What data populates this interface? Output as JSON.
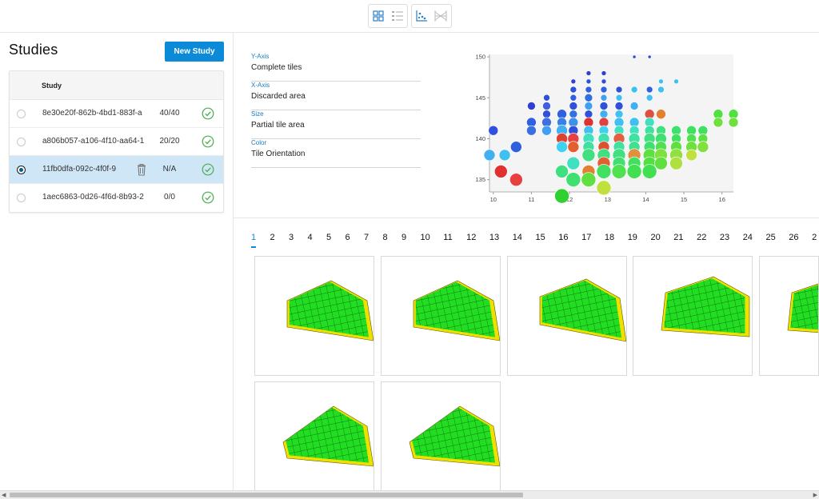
{
  "toolbar": {
    "views": [
      {
        "name": "grid-view",
        "icon": "grid-icon"
      },
      {
        "name": "list-view",
        "icon": "list-icon"
      },
      {
        "name": "scatter-view",
        "icon": "scatter-plot-icon"
      },
      {
        "name": "parallel-view",
        "icon": "parallel-coordinates-icon"
      }
    ]
  },
  "sidebar": {
    "title": "Studies",
    "new_study_label": "New Study",
    "table_header": "Study",
    "rows": [
      {
        "id": "8e30e20f-862b-4bd1-883f-a",
        "progress": "40/40",
        "selected": false
      },
      {
        "id": "a806b057-a106-4f10-aa64-1",
        "progress": "20/20",
        "selected": false
      },
      {
        "id": "11fb0dfa-092c-4f0f-9",
        "progress": "N/A",
        "selected": true
      },
      {
        "id": "1aec6863-0d26-4f6d-8b93-2",
        "progress": "0/0",
        "selected": false
      }
    ]
  },
  "axes": {
    "y": {
      "label": "Y-Axis",
      "value": "Complete tiles"
    },
    "x": {
      "label": "X-Axis",
      "value": "Discarded area"
    },
    "size": {
      "label": "Size",
      "value": "Partial tile area"
    },
    "color": {
      "label": "Color",
      "value": "Tile Orientation"
    }
  },
  "chart_data": {
    "type": "scatter",
    "xlim": [
      9.9,
      16.3
    ],
    "ylim": [
      133.5,
      150.3
    ],
    "xticks": [
      "10",
      "11",
      "12",
      "13",
      "14",
      "15",
      "16"
    ],
    "yticks": [
      "135",
      "140",
      "145",
      "150"
    ],
    "grid": false,
    "points": [
      [
        10.0,
        141,
        6,
        "#3050e0"
      ],
      [
        9.9,
        138,
        7,
        "#40b0f0"
      ],
      [
        10.3,
        138,
        7,
        "#40c0f0"
      ],
      [
        10.6,
        139,
        7,
        "#3060e0"
      ],
      [
        10.2,
        136,
        8,
        "#e03030"
      ],
      [
        10.6,
        135,
        8,
        "#e84040"
      ],
      [
        11.0,
        144,
        5,
        "#3040d0"
      ],
      [
        11.0,
        142,
        6,
        "#3060e0"
      ],
      [
        11.0,
        141,
        6,
        "#3870e0"
      ],
      [
        11.4,
        145,
        4,
        "#3050d8"
      ],
      [
        11.4,
        144,
        5,
        "#4060e0"
      ],
      [
        11.4,
        143,
        5,
        "#3050d8"
      ],
      [
        11.4,
        142,
        6,
        "#4070e0"
      ],
      [
        11.4,
        141,
        6,
        "#40a0f0"
      ],
      [
        11.8,
        143,
        6,
        "#3060e0"
      ],
      [
        11.8,
        142,
        6,
        "#3880e8"
      ],
      [
        11.8,
        141,
        7,
        "#40b0f0"
      ],
      [
        11.8,
        140,
        7,
        "#e04030"
      ],
      [
        11.8,
        139,
        7,
        "#40d0f0"
      ],
      [
        11.8,
        136,
        8,
        "#40e080"
      ],
      [
        11.8,
        133,
        9,
        "#30d030"
      ],
      [
        12.1,
        147,
        3,
        "#3040d0"
      ],
      [
        12.1,
        146,
        4,
        "#3050d8"
      ],
      [
        12.1,
        145,
        4,
        "#3060e0"
      ],
      [
        12.1,
        144,
        5,
        "#3050d8"
      ],
      [
        12.1,
        143,
        5,
        "#3070e0"
      ],
      [
        12.1,
        142,
        6,
        "#4090e8"
      ],
      [
        12.1,
        141,
        6,
        "#3050d8"
      ],
      [
        12.1,
        140,
        7,
        "#e84040"
      ],
      [
        12.1,
        139,
        7,
        "#e06030"
      ],
      [
        12.1,
        137,
        8,
        "#40e0c0"
      ],
      [
        12.1,
        135,
        9,
        "#40e070"
      ],
      [
        12.5,
        148,
        3,
        "#3040d0"
      ],
      [
        12.5,
        147,
        3,
        "#3050d8"
      ],
      [
        12.5,
        146,
        4,
        "#3060e0"
      ],
      [
        12.5,
        145,
        5,
        "#3070e0"
      ],
      [
        12.5,
        144,
        5,
        "#40a0f0"
      ],
      [
        12.5,
        143,
        5,
        "#3050d8"
      ],
      [
        12.5,
        142,
        6,
        "#e03030"
      ],
      [
        12.5,
        141,
        6,
        "#40c0f0"
      ],
      [
        12.5,
        140,
        7,
        "#40e0c0"
      ],
      [
        12.5,
        139,
        7,
        "#40e0a0"
      ],
      [
        12.5,
        138,
        8,
        "#40e080"
      ],
      [
        12.5,
        136,
        8,
        "#e08030"
      ],
      [
        12.5,
        135,
        9,
        "#60e040"
      ],
      [
        12.9,
        148,
        3,
        "#3040d0"
      ],
      [
        12.9,
        147,
        3,
        "#3050d8"
      ],
      [
        12.9,
        146,
        4,
        "#3060e0"
      ],
      [
        12.9,
        145,
        4,
        "#40a0f0"
      ],
      [
        12.9,
        144,
        5,
        "#3050d8"
      ],
      [
        12.9,
        143,
        5,
        "#40b0f0"
      ],
      [
        12.9,
        142,
        6,
        "#e04040"
      ],
      [
        12.9,
        141,
        6,
        "#40d0f0"
      ],
      [
        12.9,
        140,
        7,
        "#40e0b0"
      ],
      [
        12.9,
        139,
        7,
        "#e05030"
      ],
      [
        12.9,
        138,
        8,
        "#40e080"
      ],
      [
        12.9,
        137,
        8,
        "#e06030"
      ],
      [
        12.9,
        136,
        9,
        "#40e060"
      ],
      [
        12.9,
        134,
        9,
        "#c0e040"
      ],
      [
        13.3,
        146,
        4,
        "#3050d8"
      ],
      [
        13.3,
        145,
        4,
        "#40c0f0"
      ],
      [
        13.3,
        144,
        5,
        "#3050d8"
      ],
      [
        13.3,
        143,
        5,
        "#40c0f0"
      ],
      [
        13.3,
        142,
        6,
        "#40c0f0"
      ],
      [
        13.3,
        141,
        6,
        "#40e0c0"
      ],
      [
        13.3,
        140,
        7,
        "#e06040"
      ],
      [
        13.3,
        139,
        7,
        "#40e0a0"
      ],
      [
        13.3,
        138,
        8,
        "#40e080"
      ],
      [
        13.3,
        137,
        8,
        "#40e070"
      ],
      [
        13.3,
        136,
        9,
        "#50e050"
      ],
      [
        13.7,
        150,
        2,
        "#3040d0"
      ],
      [
        13.7,
        146,
        4,
        "#40c0f0"
      ],
      [
        13.7,
        144,
        5,
        "#40b0f0"
      ],
      [
        13.7,
        142,
        6,
        "#40c0f0"
      ],
      [
        13.7,
        141,
        6,
        "#40e0c0"
      ],
      [
        13.7,
        140,
        7,
        "#40e0a0"
      ],
      [
        13.7,
        139,
        7,
        "#40e090"
      ],
      [
        13.7,
        138,
        8,
        "#e09040"
      ],
      [
        13.7,
        137,
        8,
        "#40e060"
      ],
      [
        13.7,
        136,
        9,
        "#40e050"
      ],
      [
        14.1,
        150,
        2,
        "#3040d0"
      ],
      [
        14.1,
        146,
        4,
        "#3060e0"
      ],
      [
        14.1,
        145,
        4,
        "#40c0f0"
      ],
      [
        14.1,
        143,
        6,
        "#e05040"
      ],
      [
        14.1,
        142,
        6,
        "#40e0c0"
      ],
      [
        14.1,
        141,
        6,
        "#40e0a0"
      ],
      [
        14.1,
        140,
        7,
        "#40e080"
      ],
      [
        14.1,
        139,
        7,
        "#40e070"
      ],
      [
        14.1,
        138,
        8,
        "#60e040"
      ],
      [
        14.1,
        137,
        8,
        "#50e040"
      ],
      [
        14.1,
        136,
        9,
        "#40e050"
      ],
      [
        14.4,
        147,
        3,
        "#40c0f0"
      ],
      [
        14.4,
        146,
        4,
        "#40c0f0"
      ],
      [
        14.4,
        143,
        6,
        "#e08030"
      ],
      [
        14.4,
        141,
        6,
        "#40e080"
      ],
      [
        14.4,
        140,
        7,
        "#40e070"
      ],
      [
        14.4,
        139,
        7,
        "#50e050"
      ],
      [
        14.4,
        138,
        8,
        "#80e040"
      ],
      [
        14.4,
        137,
        8,
        "#60e040"
      ],
      [
        14.8,
        147,
        3,
        "#40c0f0"
      ],
      [
        14.8,
        141,
        6,
        "#40e070"
      ],
      [
        14.8,
        140,
        6,
        "#40e060"
      ],
      [
        14.8,
        139,
        7,
        "#60e040"
      ],
      [
        14.8,
        138,
        8,
        "#90e040"
      ],
      [
        14.8,
        137,
        8,
        "#b0e040"
      ],
      [
        15.2,
        141,
        6,
        "#40e060"
      ],
      [
        15.2,
        140,
        6,
        "#50e050"
      ],
      [
        15.2,
        139,
        7,
        "#70e040"
      ],
      [
        15.2,
        138,
        7,
        "#c0e040"
      ],
      [
        15.5,
        141,
        6,
        "#40e060"
      ],
      [
        15.5,
        140,
        6,
        "#60e040"
      ],
      [
        15.5,
        139,
        7,
        "#80e040"
      ],
      [
        15.9,
        143,
        6,
        "#50e040"
      ],
      [
        15.9,
        142,
        6,
        "#70e040"
      ],
      [
        16.3,
        143,
        6,
        "#50e040"
      ],
      [
        16.3,
        142,
        6,
        "#70e040"
      ]
    ]
  },
  "pagination": {
    "pages": [
      "1",
      "2",
      "3",
      "4",
      "5",
      "6",
      "7",
      "8",
      "9",
      "10",
      "11",
      "12",
      "13",
      "14",
      "15",
      "16",
      "17",
      "18",
      "19",
      "20",
      "21",
      "22",
      "23",
      "24",
      "25",
      "26",
      "2"
    ],
    "active": "1"
  },
  "thumbnails": {
    "count": 7,
    "colors": {
      "tile": "#22dd22",
      "partial": "#f0e000",
      "grid": "#0a5a0a"
    }
  }
}
